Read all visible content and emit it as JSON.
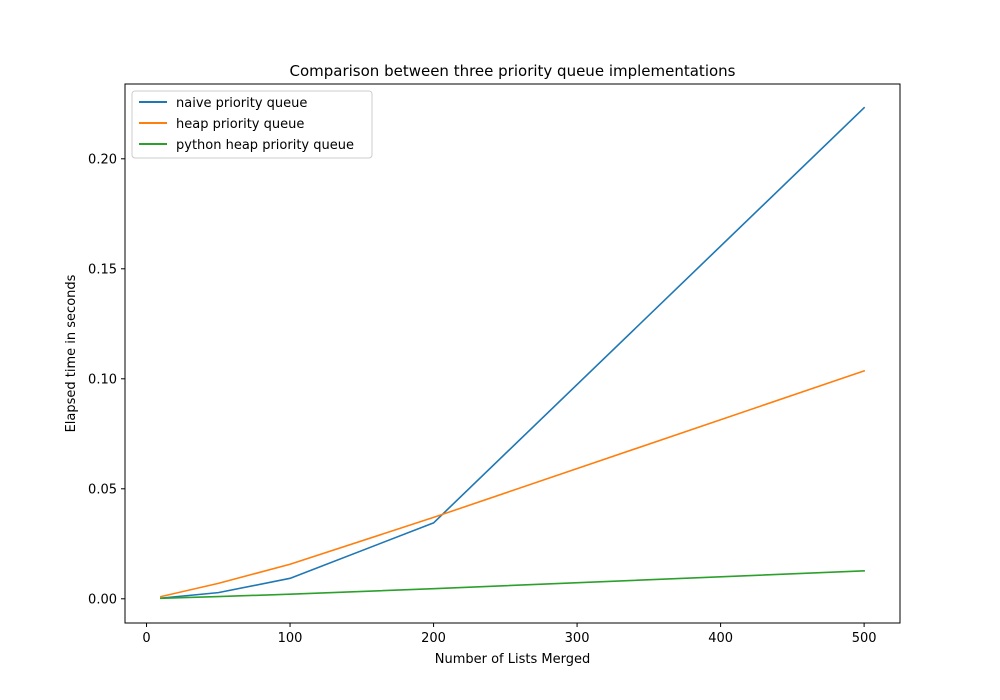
{
  "chart_data": {
    "type": "line",
    "title": "Comparison between three priority queue implementations",
    "xlabel": "Number of Lists Merged",
    "ylabel": "Elapsed time in seconds",
    "xlim": [
      -15,
      525
    ],
    "ylim": [
      -0.011,
      0.234
    ],
    "xticks": [
      0,
      100,
      200,
      300,
      400,
      500
    ],
    "yticks": [
      0.0,
      0.05,
      0.1,
      0.15,
      0.2
    ],
    "xtick_labels": [
      "0",
      "100",
      "200",
      "300",
      "400",
      "500"
    ],
    "ytick_labels": [
      "0.00",
      "0.05",
      "0.10",
      "0.15",
      "0.20"
    ],
    "grid": false,
    "legend_position": "upper-left",
    "x": [
      10,
      50,
      100,
      200,
      500
    ],
    "series": [
      {
        "name": "naive priority queue",
        "color": "#1f77b4",
        "values": [
          0.0003,
          0.0028,
          0.0093,
          0.0345,
          0.2232
        ]
      },
      {
        "name": "heap priority queue",
        "color": "#ff7f0e",
        "values": [
          0.001,
          0.007,
          0.0157,
          0.037,
          0.1036
        ]
      },
      {
        "name": "python heap priority queue",
        "color": "#2ca02c",
        "values": [
          0.0002,
          0.001,
          0.0021,
          0.0046,
          0.0127
        ]
      }
    ]
  }
}
